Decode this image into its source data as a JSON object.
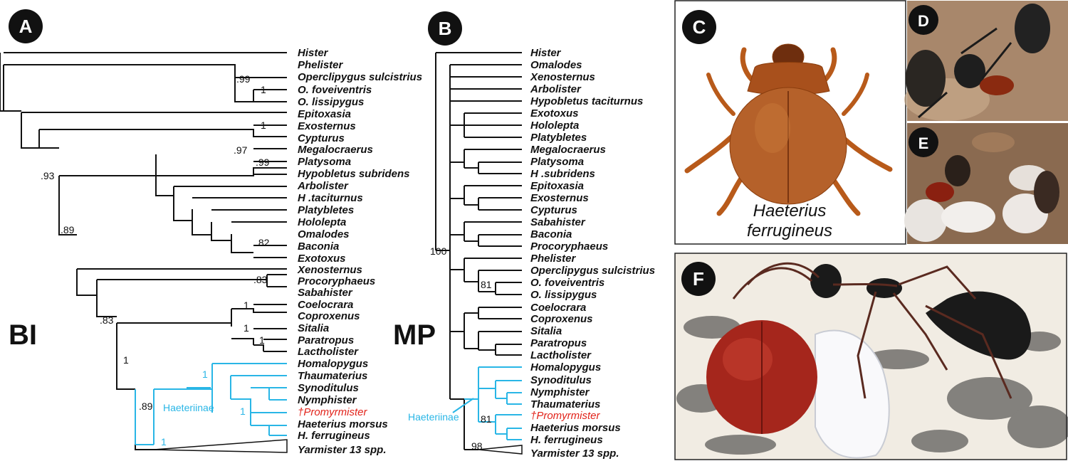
{
  "colors": {
    "black": "#111111",
    "haeteriinae": "#29b6e6",
    "fossil": "#e2231a"
  },
  "panels": {
    "a": "A",
    "b": "B",
    "c": "C",
    "d": "D",
    "e": "E",
    "f": "F"
  },
  "methods": {
    "bi": "BI",
    "mp": "MP"
  },
  "bi_tree": {
    "taxa": [
      "Hister",
      "Phelister",
      "Operclipygus sulcistrius",
      "O. foveiventris",
      "O. lissipygus",
      "Epitoxasia",
      "Exosternus",
      "Cypturus",
      "Megalocraerus",
      "Platysoma",
      "Hypobletus subridens",
      "Arbolister",
      "H .taciturnus",
      "Platybletes",
      "Hololepta",
      "Omalodes",
      "Baconia",
      "Exotoxus",
      "Xenosternus",
      "Procoryphaeus",
      "Sabahister",
      "Coelocrara",
      "Coproxenus",
      "Sitalia",
      "Paratropus",
      "Lactholister",
      "Homalopygus",
      "Thaumaterius",
      "Synoditulus",
      "Nymphister",
      "†Promyrmister",
      "Haeterius morsus",
      "H. ferrugineus",
      "Yarmister 13 spp."
    ],
    "supports": [
      ".99",
      "1",
      "1",
      ".93",
      ".97",
      ".99",
      ".89",
      ".82",
      ".83",
      ".83",
      "1",
      "1",
      "1",
      "1",
      ".89",
      "1",
      "1",
      "1"
    ],
    "clade_label": "Haeteriinae"
  },
  "mp_tree": {
    "taxa": [
      "Hister",
      "Omalodes",
      "Xenosternus",
      "Arbolister",
      "Hypobletus taciturnus",
      "Exotoxus",
      "Hololepta",
      "Platybletes",
      "Megalocraerus",
      "Platysoma",
      "H .subridens",
      "Epitoxasia",
      "Exosternus",
      "Cypturus",
      "Sabahister",
      "Baconia",
      "Procoryphaeus",
      "Phelister",
      "Operclipygus sulcistrius",
      "O. foveiventris",
      "O. lissipygus",
      "Coelocrara",
      "Coproxenus",
      "Sitalia",
      "Paratropus",
      "Lactholister",
      "Homalopygus",
      "Synoditulus",
      "Nymphister",
      "Thaumaterius",
      "†Promyrmister",
      "Haeterius morsus",
      "H. ferrugineus",
      "Yarmister 13 spp."
    ],
    "supports": [
      "100",
      "81",
      "81",
      "98"
    ],
    "clade_label": "Haeteriinae"
  },
  "beetle_caption": {
    "line1": "Haeterius",
    "line2": "ferrugineus"
  }
}
